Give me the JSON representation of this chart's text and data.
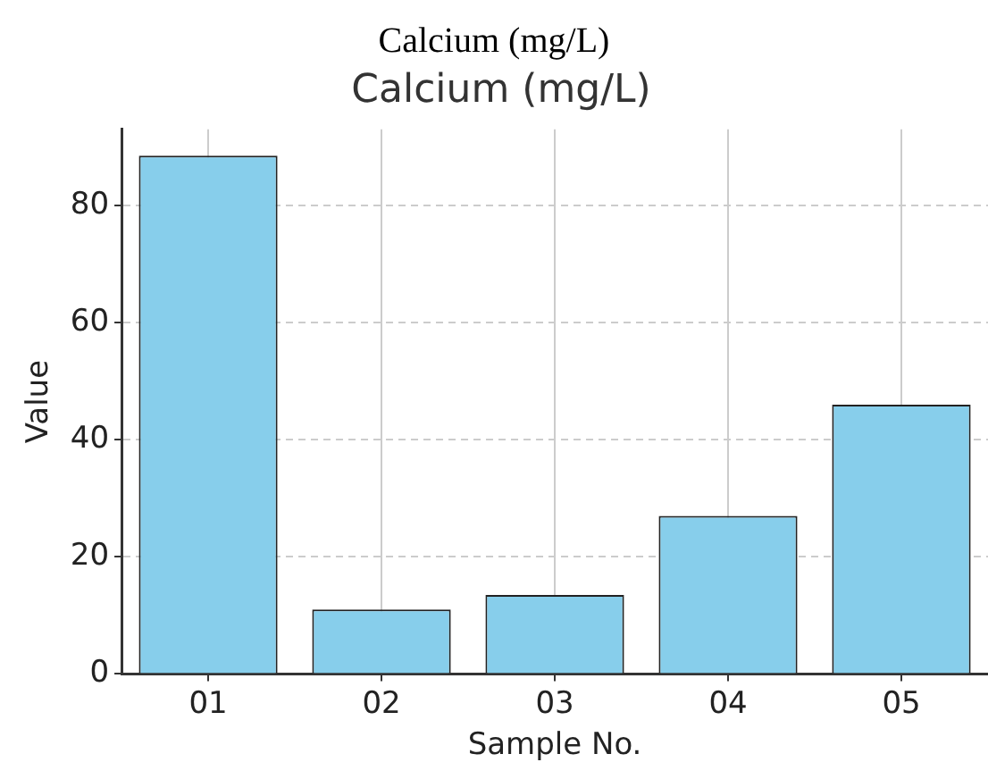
{
  "chart_data": {
    "type": "bar",
    "title": "Calcium (mg/L)",
    "subtitle": "Calcium (mg/L)",
    "xlabel": "Sample No.",
    "ylabel": "Value",
    "categories": [
      "01",
      "02",
      "03",
      "04",
      "05"
    ],
    "values": [
      88.5,
      11,
      13.5,
      27,
      46
    ],
    "color": "#87ceeb",
    "ylim": [
      0,
      93
    ],
    "yticks": [
      0,
      20,
      40,
      60,
      80
    ],
    "grid": true,
    "legend": false
  }
}
